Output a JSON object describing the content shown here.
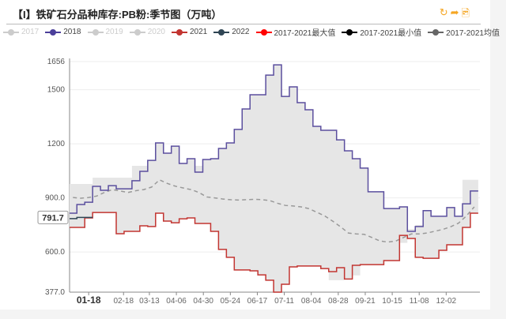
{
  "header": {
    "title": "【I】铁矿石分品种库存:PB粉:季节图（万吨）",
    "icons": [
      "refresh-icon",
      "share-icon",
      "export-image-icon"
    ]
  },
  "legend": [
    {
      "label": "2017",
      "color": "#cccccc",
      "active": false
    },
    {
      "label": "2018",
      "color": "#4b3f9a",
      "active": true
    },
    {
      "label": "2019",
      "color": "#cccccc",
      "active": false
    },
    {
      "label": "2020",
      "color": "#cccccc",
      "active": false
    },
    {
      "label": "2021",
      "color": "#c23531",
      "active": true
    },
    {
      "label": "2022",
      "color": "#2f4554",
      "active": true
    },
    {
      "label": "2017-2021最大值",
      "color": "#ff0000",
      "active": true
    },
    {
      "label": "2017-2021最小值",
      "color": "#000000",
      "active": true
    },
    {
      "label": "2017-2021均值",
      "color": "#666666",
      "active": true
    }
  ],
  "chart_data": {
    "type": "line",
    "title": "【I】铁矿石分品种库存:PB粉:季节图（万吨）",
    "ylim": [
      377.0,
      1656
    ],
    "y_ticks": [
      "377.0",
      "600.0",
      "900.0",
      "1200",
      "1500",
      "1656"
    ],
    "x_ticks": [
      "01-18",
      "02-18",
      "03-13",
      "04-06",
      "04-30",
      "05-24",
      "06-17",
      "07-11",
      "08-04",
      "08-28",
      "09-21",
      "10-15",
      "11-08",
      "12-02"
    ],
    "current_x_label": "01-18",
    "current_value_label": "791.7",
    "x_start": "01-04",
    "x_step_days": 7,
    "series": [
      {
        "name": "2018",
        "color": "#5b4f9e",
        "values": [
          815,
          863,
          876,
          964,
          942,
          968,
          950,
          950,
          995,
          1047,
          1108,
          1205,
          1148,
          1187,
          1091,
          1117,
          1043,
          1113,
          1117,
          1174,
          1205,
          1280,
          1393,
          1472,
          1472,
          1581,
          1638,
          1463,
          1516,
          1428,
          1389,
          1297,
          1275,
          1275,
          1222,
          1161,
          1117,
          1065,
          934,
          934,
          841,
          841,
          850,
          714,
          741,
          829,
          798,
          798,
          846,
          798,
          867,
          938
        ]
      },
      {
        "name": "2021",
        "color": "#c23531",
        "values": [
          736,
          736,
          789,
          819,
          819,
          819,
          701,
          714,
          714,
          745,
          741,
          815,
          771,
          762,
          784,
          789,
          758,
          758,
          714,
          614,
          570,
          500,
          500,
          495,
          473,
          443,
          377,
          421,
          517,
          522,
          522,
          522,
          508,
          491,
          513,
          450,
          526,
          530,
          530,
          530,
          552,
          552,
          692,
          675,
          570,
          565,
          565,
          609,
          640,
          640,
          736,
          815
        ]
      },
      {
        "name": "2022",
        "color": "#2f4554",
        "values": [
          785,
          791.7,
          791.7
        ]
      },
      {
        "name": "2017-2021最大值",
        "values": [
          977,
          977,
          977,
          1012,
          1012,
          1012,
          1012,
          1012,
          1078,
          1078,
          1108,
          1205,
          1148,
          1187,
          1091,
          1117,
          1078,
          1113,
          1117,
          1174,
          1205,
          1280,
          1393,
          1472,
          1472,
          1581,
          1638,
          1463,
          1516,
          1428,
          1389,
          1297,
          1275,
          1275,
          1222,
          1161,
          1117,
          1065,
          934,
          934,
          841,
          841,
          850,
          727,
          750,
          829,
          798,
          798,
          846,
          798,
          1000,
          1000
        ]
      },
      {
        "name": "2017-2021最小值",
        "values": [
          736,
          736,
          789,
          819,
          819,
          819,
          701,
          714,
          714,
          745,
          741,
          815,
          771,
          762,
          784,
          789,
          758,
          758,
          714,
          614,
          570,
          500,
          500,
          495,
          473,
          443,
          377,
          421,
          517,
          522,
          522,
          522,
          508,
          443,
          443,
          450,
          470,
          530,
          530,
          530,
          552,
          552,
          650,
          675,
          570,
          565,
          565,
          609,
          640,
          640,
          736,
          815
        ]
      },
      {
        "name": "2017-2021均值",
        "color": "#999999",
        "values": [
          902,
          898,
          902,
          910,
          930,
          946,
          938,
          930,
          940,
          946,
          960,
          1000,
          980,
          965,
          955,
          946,
          930,
          905,
          900,
          894,
          890,
          888,
          890,
          892,
          890,
          885,
          870,
          858,
          855,
          850,
          840,
          820,
          800,
          771,
          740,
          705,
          700,
          698,
          680,
          661,
          655,
          660,
          680,
          700,
          700,
          705,
          715,
          725,
          740,
          760,
          800,
          850
        ]
      }
    ]
  }
}
